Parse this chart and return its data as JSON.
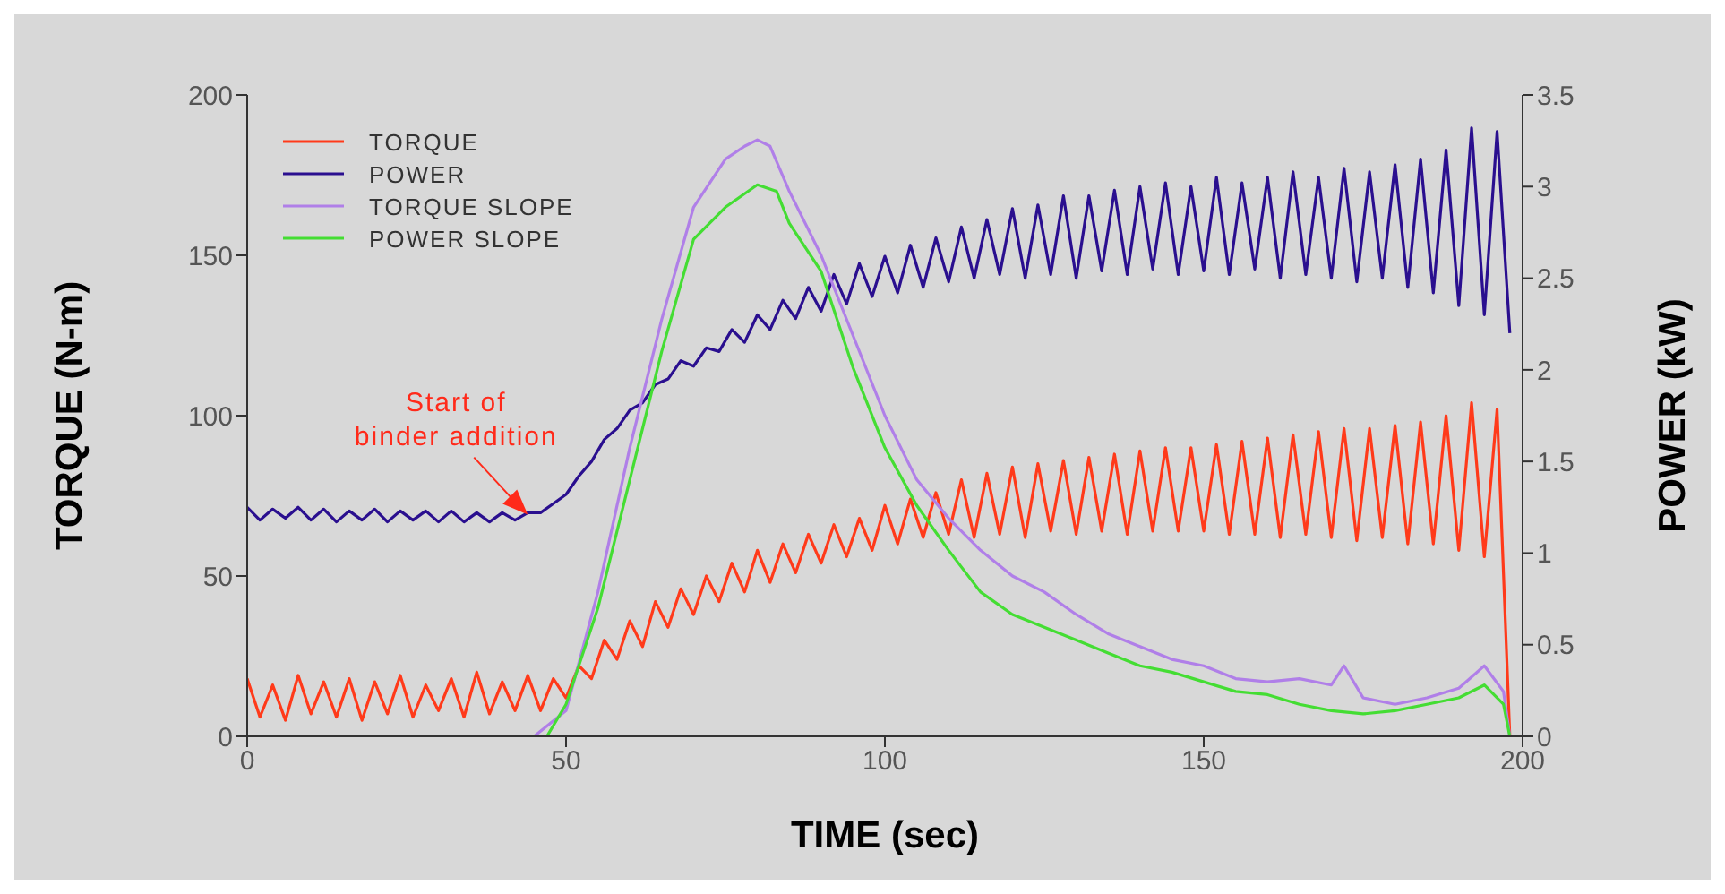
{
  "chart_data": {
    "type": "line",
    "xlabel": "TIME (sec)",
    "ylabel": "TORQUE (N-m)",
    "y2label": "POWER (kW)",
    "xlim": [
      0,
      200
    ],
    "xticks": [
      0,
      50,
      100,
      150,
      200
    ],
    "ylim": [
      0,
      200
    ],
    "yticks": [
      0,
      50,
      100,
      150,
      200
    ],
    "y2lim": [
      0,
      3.5
    ],
    "y2ticks": [
      0,
      0.5,
      1,
      1.5,
      2,
      2.5,
      3,
      3.5
    ],
    "grid": false,
    "legend": "top left",
    "marker": "none",
    "line_style": "solid",
    "annotations": [
      {
        "text": "Start of\nbinder addition",
        "x": 44,
        "y": 68
      }
    ],
    "series": [
      {
        "name": "TORQUE",
        "color": "#ff3a1a",
        "x": [
          0,
          2,
          4,
          6,
          8,
          10,
          12,
          14,
          16,
          18,
          20,
          22,
          24,
          26,
          28,
          30,
          32,
          34,
          36,
          38,
          40,
          42,
          44,
          46,
          48,
          50,
          52,
          54,
          56,
          58,
          60,
          62,
          64,
          66,
          68,
          70,
          72,
          74,
          76,
          78,
          80,
          82,
          84,
          86,
          88,
          90,
          92,
          94,
          96,
          98,
          100,
          102,
          104,
          106,
          108,
          110,
          112,
          114,
          116,
          118,
          120,
          122,
          124,
          126,
          128,
          130,
          132,
          134,
          136,
          138,
          140,
          142,
          144,
          146,
          148,
          150,
          152,
          154,
          156,
          158,
          160,
          162,
          164,
          166,
          168,
          170,
          172,
          174,
          176,
          178,
          180,
          182,
          184,
          186,
          188,
          190,
          192,
          194,
          196,
          198
        ],
        "values": [
          18,
          6,
          16,
          5,
          19,
          7,
          17,
          6,
          18,
          5,
          17,
          7,
          19,
          6,
          16,
          8,
          18,
          6,
          20,
          7,
          17,
          8,
          19,
          8,
          18,
          12,
          22,
          18,
          30,
          24,
          36,
          28,
          42,
          34,
          46,
          38,
          50,
          42,
          54,
          45,
          58,
          48,
          60,
          51,
          63,
          54,
          66,
          56,
          68,
          58,
          72,
          60,
          74,
          62,
          76,
          63,
          80,
          62,
          82,
          63,
          84,
          62,
          85,
          64,
          86,
          63,
          87,
          64,
          88,
          63,
          89,
          64,
          90,
          64,
          90,
          64,
          91,
          63,
          92,
          63,
          93,
          62,
          94,
          63,
          95,
          62,
          96,
          61,
          96,
          62,
          97,
          60,
          98,
          60,
          100,
          58,
          104,
          56,
          102,
          0
        ]
      },
      {
        "name": "POWER",
        "color": "#2a0f8f",
        "axis": "y2",
        "x": [
          0,
          2,
          4,
          6,
          8,
          10,
          12,
          14,
          16,
          18,
          20,
          22,
          24,
          26,
          28,
          30,
          32,
          34,
          36,
          38,
          40,
          42,
          44,
          46,
          48,
          50,
          52,
          54,
          56,
          58,
          60,
          62,
          64,
          66,
          68,
          70,
          72,
          74,
          76,
          78,
          80,
          82,
          84,
          86,
          88,
          90,
          92,
          94,
          96,
          98,
          100,
          102,
          104,
          106,
          108,
          110,
          112,
          114,
          116,
          118,
          120,
          122,
          124,
          126,
          128,
          130,
          132,
          134,
          136,
          138,
          140,
          142,
          144,
          146,
          148,
          150,
          152,
          154,
          156,
          158,
          160,
          162,
          164,
          166,
          168,
          170,
          172,
          174,
          176,
          178,
          180,
          182,
          184,
          186,
          188,
          190,
          192,
          194,
          196,
          198
        ],
        "values": [
          1.25,
          1.18,
          1.24,
          1.19,
          1.25,
          1.18,
          1.24,
          1.17,
          1.23,
          1.18,
          1.24,
          1.17,
          1.23,
          1.18,
          1.23,
          1.17,
          1.23,
          1.17,
          1.22,
          1.17,
          1.22,
          1.18,
          1.22,
          1.22,
          1.27,
          1.32,
          1.42,
          1.5,
          1.62,
          1.68,
          1.78,
          1.82,
          1.92,
          1.95,
          2.05,
          2.02,
          2.12,
          2.1,
          2.22,
          2.15,
          2.3,
          2.22,
          2.38,
          2.28,
          2.45,
          2.32,
          2.52,
          2.36,
          2.58,
          2.4,
          2.62,
          2.42,
          2.68,
          2.45,
          2.72,
          2.48,
          2.78,
          2.5,
          2.82,
          2.52,
          2.88,
          2.5,
          2.9,
          2.52,
          2.95,
          2.5,
          2.95,
          2.54,
          2.98,
          2.52,
          3.0,
          2.55,
          3.02,
          2.52,
          3.0,
          2.54,
          3.05,
          2.52,
          3.02,
          2.55,
          3.05,
          2.5,
          3.08,
          2.52,
          3.05,
          2.5,
          3.1,
          2.48,
          3.08,
          2.5,
          3.12,
          2.45,
          3.15,
          2.42,
          3.2,
          2.35,
          3.32,
          2.3,
          3.3,
          2.2
        ]
      },
      {
        "name": "TORQUE SLOPE",
        "color": "#b07fe8",
        "x": [
          0,
          45,
          50,
          55,
          60,
          65,
          70,
          75,
          78,
          80,
          82,
          85,
          90,
          95,
          100,
          105,
          110,
          115,
          120,
          125,
          130,
          135,
          140,
          145,
          150,
          155,
          160,
          165,
          170,
          172,
          175,
          180,
          185,
          190,
          194,
          197,
          198
        ],
        "values": [
          0,
          0,
          8,
          45,
          90,
          130,
          165,
          180,
          184,
          186,
          184,
          170,
          150,
          125,
          100,
          80,
          68,
          58,
          50,
          45,
          38,
          32,
          28,
          24,
          22,
          18,
          17,
          18,
          16,
          22,
          12,
          10,
          12,
          15,
          22,
          14,
          0
        ]
      },
      {
        "name": "POWER SLOPE",
        "color": "#44dd33",
        "x": [
          0,
          47,
          50,
          55,
          60,
          65,
          70,
          75,
          80,
          83,
          85,
          90,
          95,
          100,
          105,
          110,
          115,
          120,
          125,
          130,
          135,
          140,
          145,
          150,
          155,
          160,
          165,
          170,
          175,
          180,
          185,
          190,
          194,
          197,
          198
        ],
        "values": [
          0,
          0,
          10,
          40,
          80,
          120,
          155,
          165,
          172,
          170,
          160,
          145,
          115,
          90,
          72,
          58,
          45,
          38,
          34,
          30,
          26,
          22,
          20,
          17,
          14,
          13,
          10,
          8,
          7,
          8,
          10,
          12,
          16,
          10,
          0
        ]
      }
    ]
  }
}
